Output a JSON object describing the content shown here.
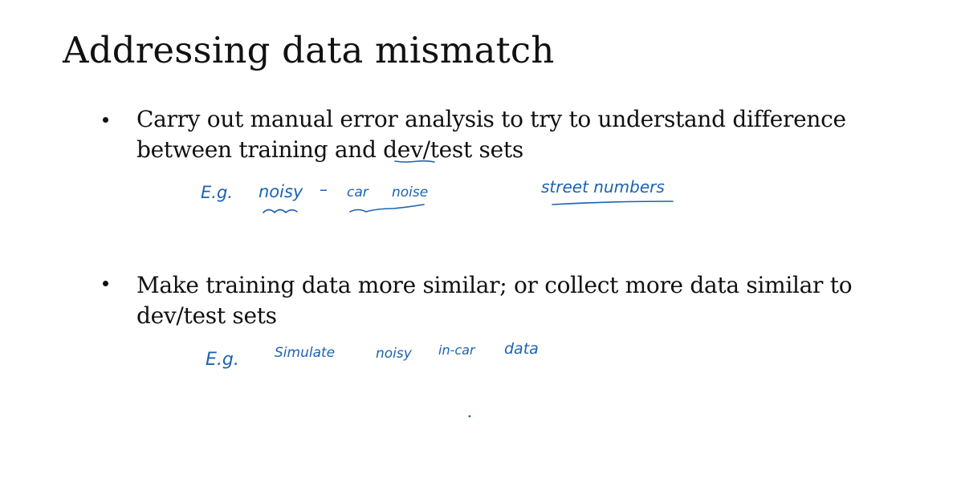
{
  "title": "Addressing data mismatch",
  "bullets": [
    {
      "lines": [
        "Carry out manual error analysis to try to understand difference",
        "between training and dev/test sets"
      ]
    },
    {
      "lines": [
        "Make training data more similar; or collect more data similar to",
        "dev/test sets"
      ]
    }
  ],
  "handwriting": {
    "note1": {
      "eg": "E.g.",
      "noisy": "noisy",
      "dash": "–",
      "car": "car",
      "noise": "noise",
      "street_numbers": "street numbers"
    },
    "note2": {
      "eg": "E.g.",
      "simulate": "Simulate",
      "noisy": "noisy",
      "in_car": "in-car",
      "data": "data"
    }
  },
  "colors": {
    "ink": "#1c63b0",
    "text": "#111111",
    "background": "#ffffff"
  }
}
